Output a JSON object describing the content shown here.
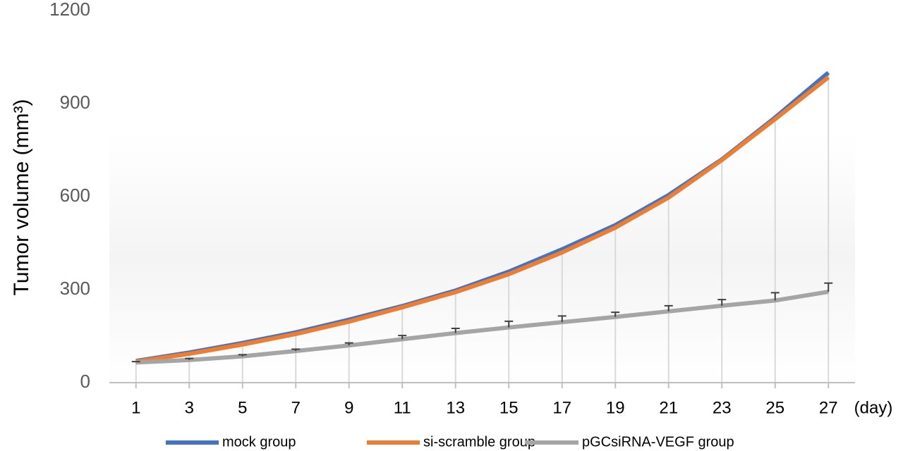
{
  "chart_data": {
    "type": "line",
    "y_label": "Tumor volume (mm³)",
    "x_unit": "(day)",
    "x": [
      1,
      3,
      5,
      7,
      9,
      11,
      13,
      15,
      17,
      19,
      21,
      23,
      25,
      27
    ],
    "xlim": [
      0,
      28
    ],
    "ylim": [
      0,
      1200
    ],
    "yticks": [
      0,
      300,
      600,
      900,
      1200
    ],
    "drop_lines": true,
    "legend": "bottom",
    "series": [
      {
        "name": "mock group",
        "color": "#4472c4",
        "values": [
          70,
          97,
          128,
          162,
          203,
          247,
          297,
          358,
          430,
          508,
          605,
          720,
          855,
          1000
        ]
      },
      {
        "name": "si-scramble group",
        "color": "#ed7d31",
        "values": [
          68,
          93,
          123,
          157,
          197,
          243,
          292,
          350,
          420,
          500,
          597,
          718,
          850,
          985
        ]
      },
      {
        "name": "pGCsiRNA-VEGF group",
        "color": "#a5a5a5",
        "values": [
          65,
          73,
          85,
          102,
          120,
          140,
          160,
          178,
          195,
          212,
          230,
          248,
          265,
          293
        ],
        "errors": [
          3,
          5,
          5,
          6,
          8,
          12,
          15,
          20,
          20,
          15,
          18,
          20,
          25,
          28
        ]
      }
    ]
  }
}
